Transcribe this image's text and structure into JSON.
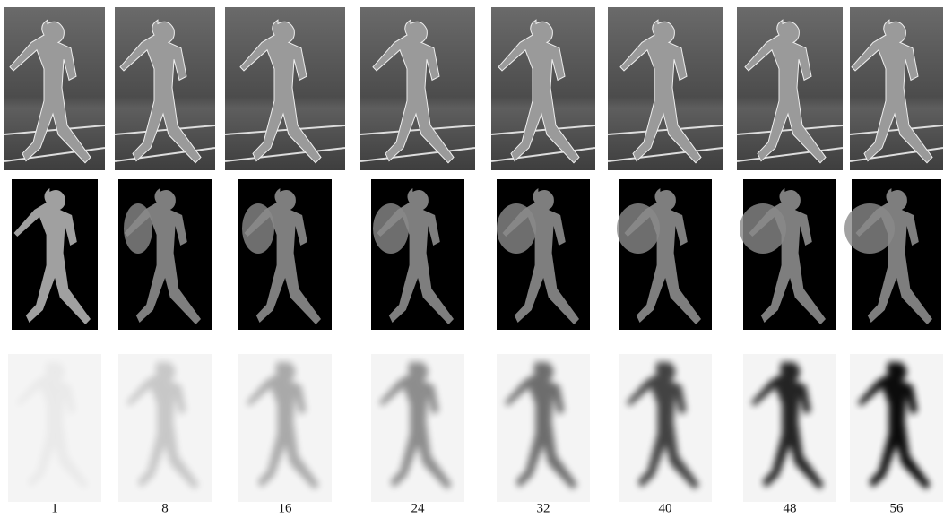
{
  "frames": {
    "labels": [
      "1",
      "8",
      "16",
      "24",
      "32",
      "40",
      "48",
      "56"
    ]
  }
}
